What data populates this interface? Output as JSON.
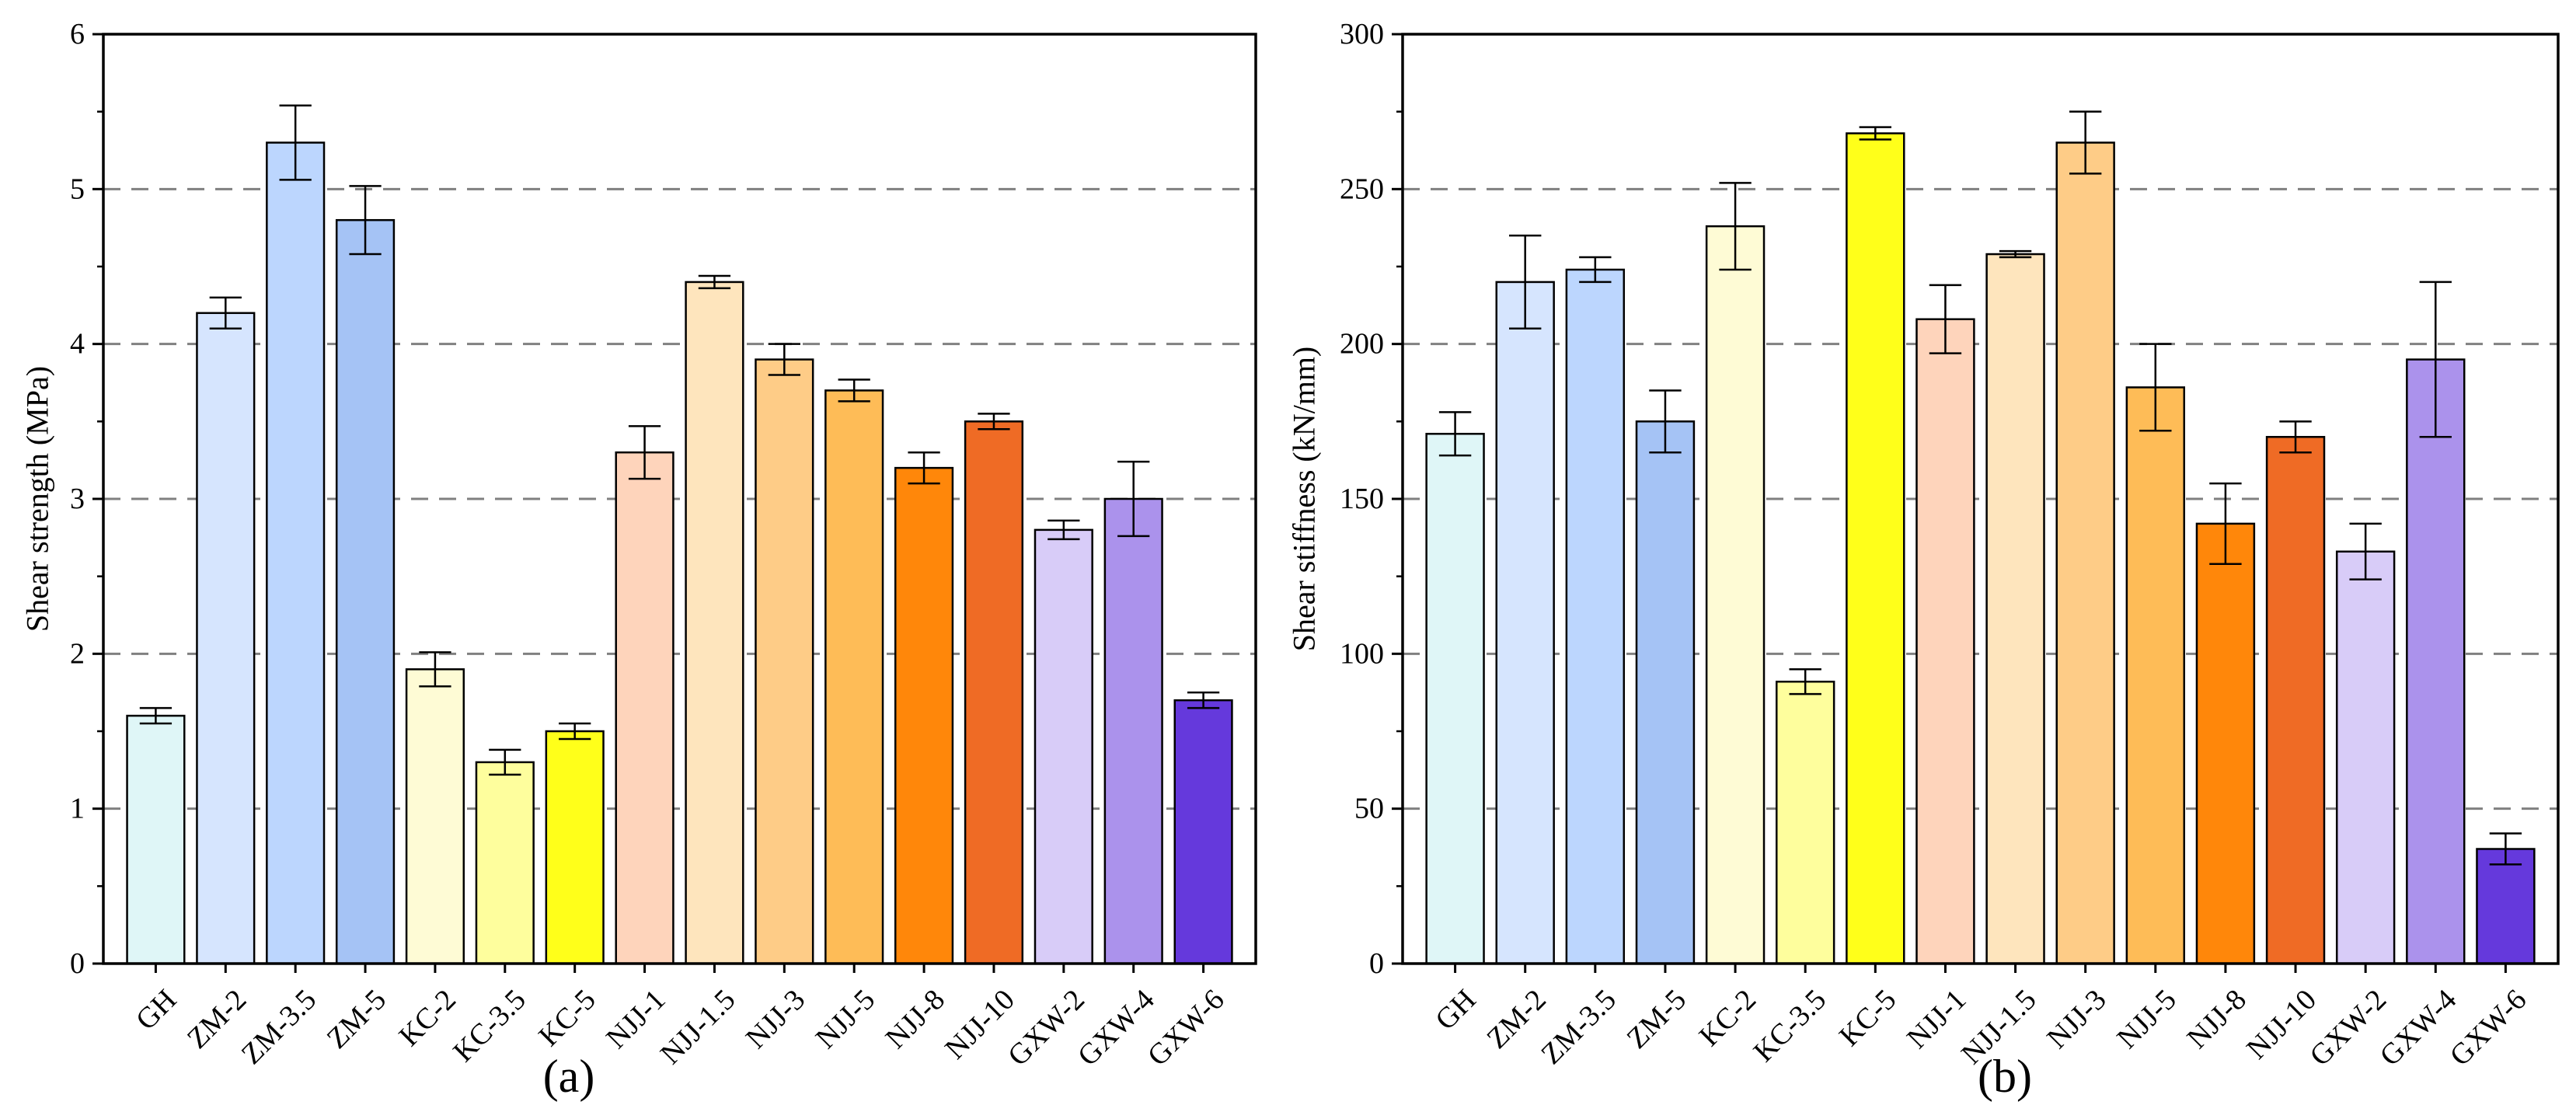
{
  "chart_data": [
    {
      "type": "bar",
      "panel_label": "(a)",
      "ylabel": "Shear strength (MPa)",
      "xlabel": "",
      "ylim": [
        0,
        6
      ],
      "yticks": [
        "0",
        "1",
        "2",
        "3",
        "4",
        "5",
        "6"
      ],
      "grid": "horizontal dashed",
      "categories": [
        "GH",
        "ZM-2",
        "ZM-3.5",
        "ZM-5",
        "KC-2",
        "KC-3.5",
        "KC-5",
        "NJJ-1",
        "NJJ-1.5",
        "NJJ-3",
        "NJJ-5",
        "NJJ-8",
        "NJJ-10",
        "GXW-2",
        "GXW-4",
        "GXW-6"
      ],
      "values": [
        1.6,
        4.2,
        5.3,
        4.8,
        1.9,
        1.3,
        1.5,
        3.3,
        4.4,
        3.9,
        3.7,
        3.2,
        3.5,
        2.8,
        3.0,
        1.7
      ],
      "errors": [
        0.05,
        0.1,
        0.24,
        0.22,
        0.11,
        0.08,
        0.05,
        0.17,
        0.04,
        0.1,
        0.07,
        0.1,
        0.05,
        0.06,
        0.24,
        0.05
      ]
    },
    {
      "type": "bar",
      "panel_label": "(b)",
      "ylabel": "Shear stiffness (kN/mm)",
      "xlabel": "",
      "ylim": [
        0,
        300
      ],
      "yticks": [
        "0",
        "50",
        "100",
        "150",
        "200",
        "250",
        "300"
      ],
      "grid": "horizontal dashed",
      "categories": [
        "GH",
        "ZM-2",
        "ZM-3.5",
        "ZM-5",
        "KC-2",
        "KC-3.5",
        "KC-5",
        "NJJ-1",
        "NJJ-1.5",
        "NJJ-3",
        "NJJ-5",
        "NJJ-8",
        "NJJ-10",
        "GXW-2",
        "GXW-4",
        "GXW-6"
      ],
      "values": [
        171,
        220,
        224,
        175,
        238,
        91,
        268,
        208,
        229,
        265,
        186,
        142,
        170,
        133,
        195,
        37
      ],
      "errors": [
        7,
        15,
        4,
        10,
        14,
        4,
        2,
        11,
        1,
        10,
        14,
        13,
        5,
        9,
        25,
        5
      ]
    }
  ],
  "colors": {
    "bars": [
      "#dff6f7",
      "#d6e5fe",
      "#bcd6fe",
      "#a5c3f5",
      "#fefbd5",
      "#fefe9d",
      "#ffff1a",
      "#fed4bb",
      "#fee5bd",
      "#fecc87",
      "#febc57",
      "#ff870a",
      "#ef6b25",
      "#d8ccf8",
      "#ab92ec",
      "#6539dc"
    ],
    "grid": "#808080",
    "axis": "#000000"
  }
}
